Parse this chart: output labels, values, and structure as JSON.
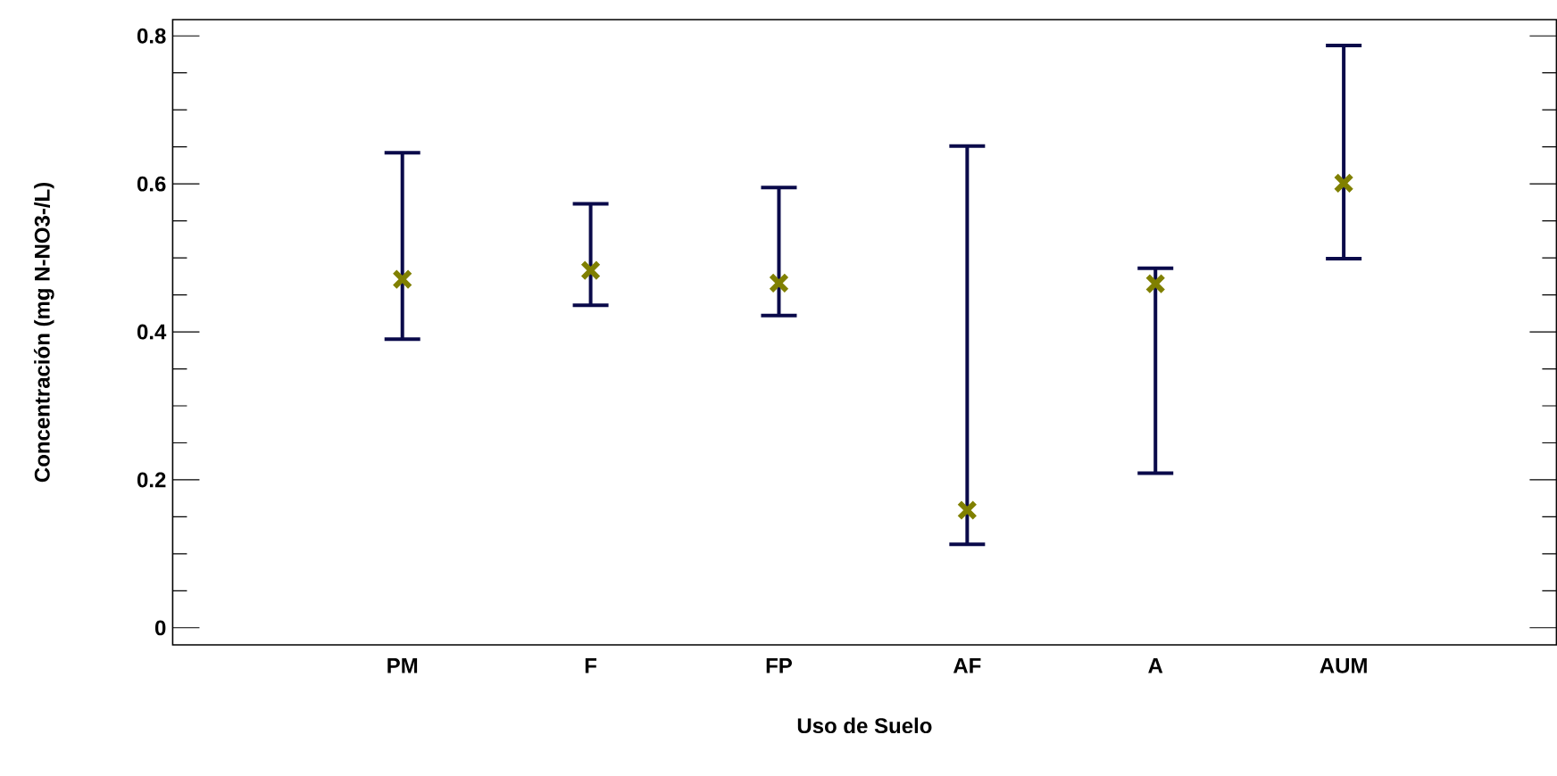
{
  "chart_data": {
    "type": "scatter",
    "xlabel": "Uso de Suelo",
    "ylabel": "Concentración (mg N-NO3-/L)",
    "categories": [
      "PM",
      "F",
      "FP",
      "AF",
      "A",
      "AUM"
    ],
    "values": [
      0.471,
      0.483,
      0.466,
      0.159,
      0.465,
      0.601
    ],
    "errors": [
      [
        0.39,
        0.642
      ],
      [
        0.436,
        0.573
      ],
      [
        0.422,
        0.595
      ],
      [
        0.113,
        0.651
      ],
      [
        0.209,
        0.486
      ],
      [
        0.499,
        0.787
      ]
    ],
    "color": "#808000",
    "marker": "cross",
    "grid": false,
    "ylim": [
      -0.023,
      0.822
    ],
    "yticks": [
      0,
      {
        "value": 0.05,
        "label": null
      },
      {
        "value": 0.1,
        "label": null
      },
      {
        "value": 0.15,
        "label": null
      },
      0.2,
      {
        "value": 0.25,
        "label": null
      },
      {
        "value": 0.3,
        "label": null
      },
      {
        "value": 0.35,
        "label": null
      },
      0.4,
      {
        "value": 0.45,
        "label": null
      },
      {
        "value": 0.5,
        "label": null
      },
      {
        "value": 0.55,
        "label": null
      },
      0.6,
      {
        "value": 0.65,
        "label": null
      },
      {
        "value": 0.7,
        "label": null
      },
      {
        "value": 0.75,
        "label": null
      },
      0.8
    ]
  }
}
